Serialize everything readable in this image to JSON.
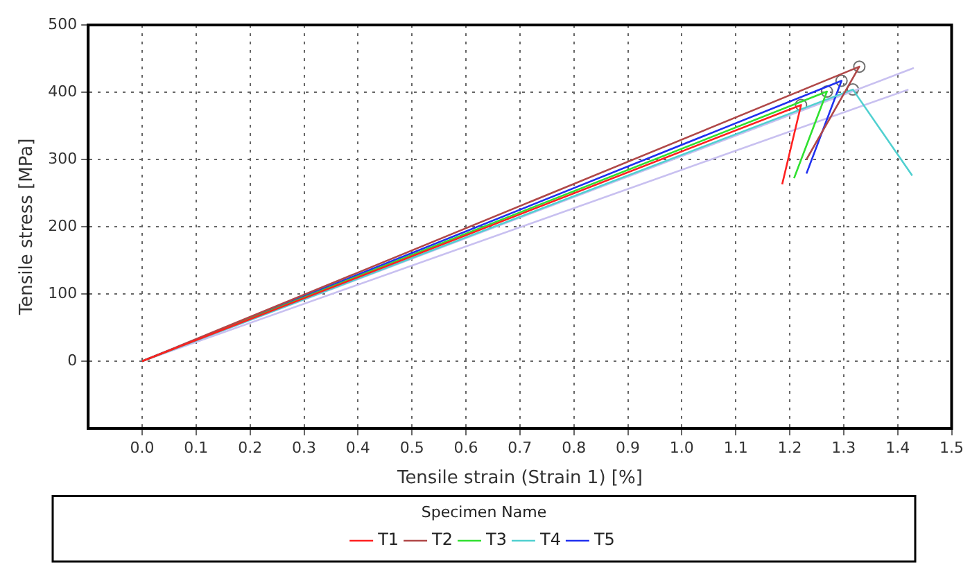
{
  "chart_data": {
    "type": "line",
    "xlabel": "Tensile strain (Strain 1) [%]",
    "ylabel": "Tensile stress [MPa]",
    "legend_title": "Specimen Name",
    "series": [
      {
        "name": "T1",
        "color": "#ff2020",
        "x": [
          0,
          1.221,
          1.186
        ],
        "values": [
          0,
          381,
          263
        ]
      },
      {
        "name": "T2",
        "color": "#b04848",
        "x": [
          0,
          1.329,
          1.231
        ],
        "values": [
          0,
          438,
          300
        ]
      },
      {
        "name": "T3",
        "color": "#30e030",
        "x": [
          0,
          1.269,
          1.208
        ],
        "values": [
          0,
          401,
          272
        ]
      },
      {
        "name": "T4",
        "color": "#50d0d0",
        "x": [
          0,
          1.317,
          1.427
        ],
        "values": [
          0,
          404,
          276
        ]
      },
      {
        "name": "T5",
        "color": "#2030f0",
        "x": [
          0,
          1.296,
          1.231
        ],
        "values": [
          0,
          417,
          279
        ]
      },
      {
        "color": "#c8c0f0",
        "x": [
          0,
          1.43
        ],
        "values": [
          0,
          436
        ]
      },
      {
        "color": "#c8c0f0",
        "x": [
          0,
          1.42
        ],
        "values": [
          0,
          404
        ]
      },
      {
        "type": "scatter",
        "marker": "circle",
        "color": "#707070",
        "x": [
          1.221,
          1.329,
          1.269,
          1.317,
          1.296
        ],
        "values": [
          381,
          438,
          401,
          404,
          417
        ]
      }
    ],
    "xlim": [
      -0.1,
      1.5
    ],
    "xticks": [
      {
        "value": 0,
        "label": "0.0"
      },
      0.1,
      0.2,
      0.3,
      0.4,
      0.5,
      0.6,
      0.7,
      0.8,
      0.9,
      {
        "value": 1,
        "label": "1.0"
      },
      1.1,
      1.2,
      1.3,
      1.4,
      1.5
    ],
    "ylim": [
      -100,
      500
    ],
    "yticks": [
      0,
      100,
      200,
      300,
      400,
      500
    ],
    "grid": true,
    "legend": "bottom",
    "marker": "none",
    "line_style": "solid"
  }
}
